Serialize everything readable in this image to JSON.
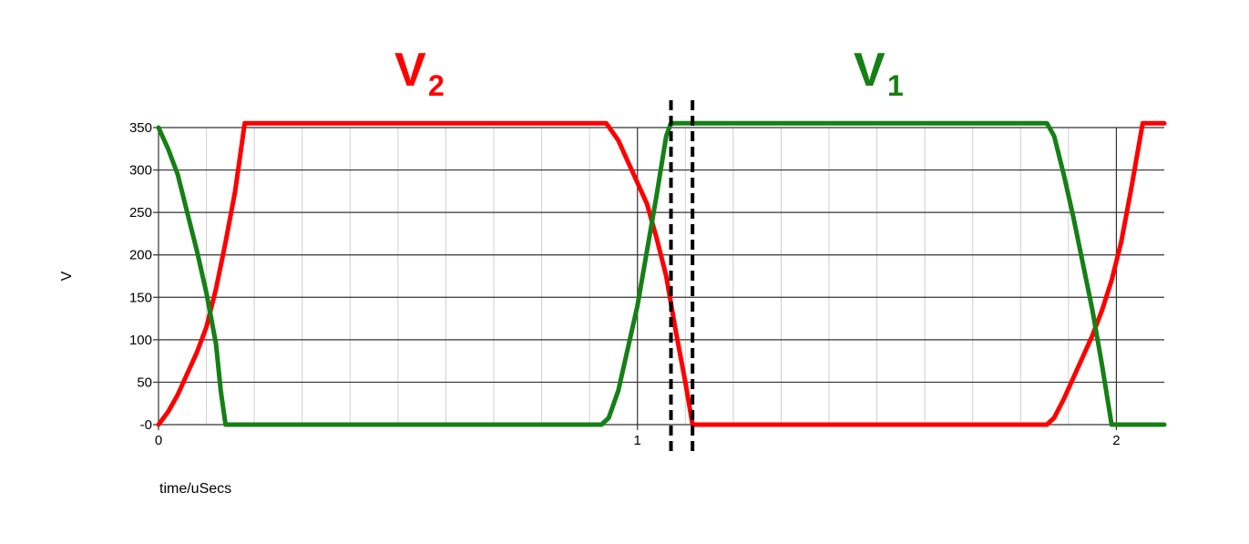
{
  "chart_data": {
    "type": "line",
    "xlabel": "time/uSecs",
    "ylabel": "V",
    "xlim": [
      0,
      2.1
    ],
    "ylim": [
      0,
      350
    ],
    "x_ticks": [
      0,
      1,
      2
    ],
    "x_tick_labels": [
      "0",
      "1",
      "2"
    ],
    "y_ticks": [
      0,
      50,
      100,
      150,
      200,
      250,
      300,
      350
    ],
    "y_tick_labels": [
      "-0",
      "50",
      "100",
      "150",
      "200",
      "250",
      "300",
      "350"
    ],
    "grid": true,
    "minor_x_step": 0.1,
    "series_labels": [
      {
        "series": "V2",
        "base": "V",
        "sub": "2",
        "color": "#ff0000"
      },
      {
        "series": "V1",
        "base": "V",
        "sub": "1",
        "color": "#158015"
      }
    ],
    "series": [
      {
        "name": "V2",
        "color": "#ff0000",
        "points": [
          [
            0,
            0
          ],
          [
            0.02,
            15
          ],
          [
            0.04,
            35
          ],
          [
            0.06,
            60
          ],
          [
            0.08,
            85
          ],
          [
            0.1,
            115
          ],
          [
            0.12,
            160
          ],
          [
            0.14,
            215
          ],
          [
            0.16,
            275
          ],
          [
            0.18,
            355
          ],
          [
            0.935,
            355
          ],
          [
            0.96,
            335
          ],
          [
            0.98,
            310
          ],
          [
            1.0,
            285
          ],
          [
            1.02,
            260
          ],
          [
            1.04,
            220
          ],
          [
            1.06,
            175
          ],
          [
            1.08,
            110
          ],
          [
            1.1,
            50
          ],
          [
            1.115,
            0
          ],
          [
            1.855,
            0
          ],
          [
            1.87,
            8
          ],
          [
            1.89,
            30
          ],
          [
            1.91,
            55
          ],
          [
            1.93,
            80
          ],
          [
            1.95,
            105
          ],
          [
            1.97,
            135
          ],
          [
            1.99,
            170
          ],
          [
            2.01,
            215
          ],
          [
            2.03,
            275
          ],
          [
            2.055,
            355
          ],
          [
            2.1,
            355
          ]
        ]
      },
      {
        "name": "V1",
        "color": "#158015",
        "points": [
          [
            0,
            350
          ],
          [
            0.02,
            325
          ],
          [
            0.04,
            295
          ],
          [
            0.06,
            250
          ],
          [
            0.08,
            205
          ],
          [
            0.1,
            155
          ],
          [
            0.12,
            95
          ],
          [
            0.13,
            40
          ],
          [
            0.14,
            0
          ],
          [
            0.925,
            0
          ],
          [
            0.94,
            8
          ],
          [
            0.96,
            40
          ],
          [
            0.98,
            90
          ],
          [
            1.0,
            140
          ],
          [
            1.02,
            205
          ],
          [
            1.04,
            270
          ],
          [
            1.06,
            340
          ],
          [
            1.07,
            355
          ],
          [
            1.855,
            355
          ],
          [
            1.87,
            340
          ],
          [
            1.89,
            295
          ],
          [
            1.91,
            245
          ],
          [
            1.93,
            190
          ],
          [
            1.95,
            135
          ],
          [
            1.97,
            70
          ],
          [
            1.99,
            0
          ],
          [
            2.1,
            0
          ]
        ]
      }
    ],
    "markers": [
      {
        "x": 1.07,
        "style": "dashed",
        "color": "#000000"
      },
      {
        "x": 1.115,
        "style": "dashed",
        "color": "#000000"
      }
    ]
  }
}
